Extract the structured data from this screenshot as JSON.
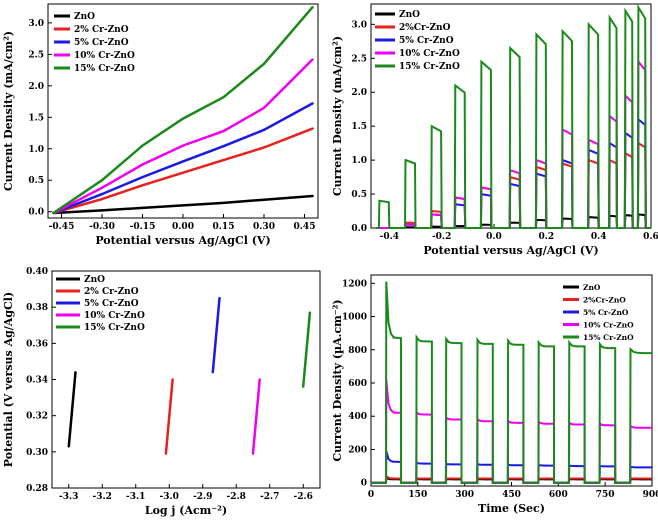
{
  "chart_data": [
    {
      "id": "a",
      "type": "line",
      "xlabel": "Potential versus Ag/AgCl (V)",
      "ylabel": "Current Density (mA/cm²)",
      "xlim": [
        -0.5,
        0.5
      ],
      "ylim": [
        -0.1,
        3.3
      ],
      "xticks": [
        -0.45,
        -0.3,
        -0.15,
        0.0,
        0.15,
        0.3,
        0.45
      ],
      "xtick_labels": [
        "-0.45",
        "-0.30",
        "-0.15",
        "0.00",
        "0.15",
        "0.30",
        "0.45"
      ],
      "yticks": [
        0.0,
        0.5,
        1.0,
        1.5,
        2.0,
        2.5,
        3.0
      ],
      "ytick_labels": [
        "0.0",
        "0.5",
        "1.0",
        "1.5",
        "2.0",
        "2.5",
        "3.0"
      ],
      "legend_position": "top-left",
      "series": [
        {
          "name": "ZnO",
          "color": "#000000",
          "x": [
            -0.48,
            -0.3,
            -0.15,
            0.0,
            0.15,
            0.3,
            0.48
          ],
          "y": [
            -0.02,
            0.02,
            0.06,
            0.1,
            0.14,
            0.19,
            0.25
          ]
        },
        {
          "name": "2% Cr-ZnO",
          "color": "#e8201e",
          "x": [
            -0.48,
            -0.3,
            -0.15,
            0.0,
            0.15,
            0.3,
            0.48
          ],
          "y": [
            -0.02,
            0.2,
            0.42,
            0.62,
            0.82,
            1.02,
            1.32
          ]
        },
        {
          "name": "5% Cr-ZnO",
          "color": "#1a1ae6",
          "x": [
            -0.48,
            -0.3,
            -0.15,
            0.0,
            0.15,
            0.3,
            0.48
          ],
          "y": [
            -0.02,
            0.28,
            0.55,
            0.8,
            1.04,
            1.3,
            1.72
          ]
        },
        {
          "name": "10% Cr-ZnO",
          "color": "#f000f0",
          "x": [
            -0.48,
            -0.3,
            -0.15,
            0.0,
            0.15,
            0.3,
            0.48
          ],
          "y": [
            -0.02,
            0.38,
            0.75,
            1.05,
            1.28,
            1.65,
            2.42
          ]
        },
        {
          "name": "15% Cr-ZnO",
          "color": "#1a8a1a",
          "x": [
            -0.48,
            -0.3,
            -0.15,
            0.0,
            0.15,
            0.3,
            0.48
          ],
          "y": [
            -0.02,
            0.5,
            1.05,
            1.48,
            1.82,
            2.35,
            3.25
          ]
        }
      ]
    },
    {
      "id": "b",
      "type": "line",
      "xlabel": "Potential versus Ag/AgCl (V)",
      "ylabel": "Current Density (mA/cm²)",
      "xlim": [
        -0.47,
        0.6
      ],
      "ylim": [
        0.0,
        3.3
      ],
      "xticks": [
        -0.4,
        -0.2,
        0.0,
        0.2,
        0.4,
        0.6
      ],
      "xtick_labels": [
        "-0.4",
        "-0.2",
        "0.0",
        "0.2",
        "0.4",
        "0.6"
      ],
      "yticks": [
        0.0,
        0.5,
        1.0,
        1.5,
        2.0,
        2.5,
        3.0
      ],
      "ytick_labels": [
        "0.0",
        "0.5",
        "1.0",
        "1.5",
        "2.0",
        "2.5",
        "3.0"
      ],
      "legend_position": "top-left",
      "chopped_light": true,
      "light_on_windows": [
        [
          -0.44,
          -0.4
        ],
        [
          -0.34,
          -0.3
        ],
        [
          -0.24,
          -0.2
        ],
        [
          -0.15,
          -0.11
        ],
        [
          -0.05,
          -0.01
        ],
        [
          0.06,
          0.1
        ],
        [
          0.16,
          0.2
        ],
        [
          0.26,
          0.3
        ],
        [
          0.36,
          0.4
        ],
        [
          0.44,
          0.47
        ],
        [
          0.5,
          0.53
        ],
        [
          0.55,
          0.58
        ]
      ],
      "series": [
        {
          "name": "ZnO",
          "color": "#000000",
          "peaks": [
            0.0,
            0.01,
            0.02,
            0.03,
            0.05,
            0.08,
            0.12,
            0.14,
            0.16,
            0.18,
            0.19,
            0.2
          ]
        },
        {
          "name": "2%Cr-ZnO",
          "color": "#e8201e",
          "peaks": [
            0.0,
            0.08,
            0.25,
            0.45,
            0.6,
            0.75,
            0.9,
            0.95,
            1.0,
            1.0,
            1.1,
            1.25
          ]
        },
        {
          "name": "5% Cr-ZnO",
          "color": "#1a1ae6",
          "peaks": [
            0.0,
            0.05,
            0.2,
            0.35,
            0.5,
            0.65,
            0.8,
            1.0,
            1.15,
            1.25,
            1.4,
            1.6
          ]
        },
        {
          "name": "10% Cr-ZnO",
          "color": "#f000f0",
          "peaks": [
            0.0,
            0.05,
            0.2,
            0.45,
            0.6,
            0.85,
            1.0,
            1.45,
            1.3,
            1.65,
            1.95,
            2.45
          ]
        },
        {
          "name": "15% Cr-ZnO",
          "color": "#1a8a1a",
          "peaks": [
            0.4,
            1.0,
            1.5,
            2.1,
            2.45,
            2.65,
            2.85,
            2.9,
            3.0,
            3.1,
            3.2,
            3.25
          ]
        }
      ]
    },
    {
      "id": "c",
      "type": "line",
      "xlabel": "Log j (Acm⁻²)",
      "ylabel": "Potential (V versus Ag/AgCl)",
      "xlim": [
        -3.35,
        -2.55
      ],
      "ylim": [
        0.28,
        0.4
      ],
      "xticks": [
        -3.3,
        -3.2,
        -3.1,
        -3.0,
        -2.9,
        -2.8,
        -2.7,
        -2.6
      ],
      "xtick_labels": [
        "-3.3",
        "-3.2",
        "-3.1",
        "-3.0",
        "-2.9",
        "-2.8",
        "-2.7",
        "-2.6"
      ],
      "yticks": [
        0.28,
        0.3,
        0.32,
        0.34,
        0.36,
        0.38,
        0.4
      ],
      "ytick_labels": [
        "0.28",
        "0.30",
        "0.32",
        "0.34",
        "0.36",
        "0.38",
        "0.40"
      ],
      "legend_position": "top-left",
      "series": [
        {
          "name": "ZnO",
          "color": "#000000",
          "x": [
            -3.3,
            -3.28
          ],
          "y": [
            0.303,
            0.344
          ]
        },
        {
          "name": "2% Cr-ZnO",
          "color": "#e8201e",
          "x": [
            -3.01,
            -2.99
          ],
          "y": [
            0.299,
            0.34
          ]
        },
        {
          "name": "5% Cr-ZnO",
          "color": "#1a1ae6",
          "x": [
            -2.87,
            -2.85
          ],
          "y": [
            0.344,
            0.385
          ]
        },
        {
          "name": "10% Cr-ZnO",
          "color": "#f000f0",
          "x": [
            -2.75,
            -2.73
          ],
          "y": [
            0.299,
            0.34
          ]
        },
        {
          "name": "15% Cr-ZnO",
          "color": "#1a8a1a",
          "x": [
            -2.6,
            -2.58
          ],
          "y": [
            0.336,
            0.377
          ]
        }
      ]
    },
    {
      "id": "d",
      "type": "line",
      "xlabel": "Time (Sec)",
      "ylabel": "Current Density (µA.cm⁻²)",
      "xlim": [
        0,
        900
      ],
      "ylim": [
        -20,
        1250
      ],
      "xticks": [
        0,
        150,
        300,
        450,
        600,
        750,
        900
      ],
      "xtick_labels": [
        "0",
        "150",
        "300",
        "450",
        "600",
        "750",
        "900"
      ],
      "yticks": [
        0,
        200,
        400,
        600,
        800,
        1000,
        1200
      ],
      "ytick_labels": [
        "0",
        "200",
        "400",
        "600",
        "800",
        "1000",
        "1200"
      ],
      "legend_position": "top-right",
      "on_windows": [
        [
          48,
          96
        ],
        [
          145,
          195
        ],
        [
          240,
          290
        ],
        [
          340,
          390
        ],
        [
          438,
          488
        ],
        [
          536,
          586
        ],
        [
          634,
          684
        ],
        [
          732,
          782
        ],
        [
          830,
          900
        ]
      ],
      "series": [
        {
          "name": "ZnO",
          "color": "#000000",
          "plateau": 20,
          "spike": 30,
          "decay": [
            20,
            20,
            20,
            20,
            20,
            20,
            20,
            20,
            20
          ]
        },
        {
          "name": "2%Cr-ZnO",
          "color": "#e8201e",
          "plateau": 25,
          "spike": 40,
          "decay": [
            25,
            25,
            25,
            25,
            25,
            25,
            25,
            25,
            25
          ]
        },
        {
          "name": "5% Cr-ZnO",
          "color": "#1a1ae6",
          "plateau": 110,
          "spike": 190,
          "decay": [
            125,
            115,
            110,
            108,
            105,
            103,
            100,
            98,
            92
          ]
        },
        {
          "name": "10% Cr-ZnO",
          "color": "#f000f0",
          "plateau": 400,
          "spike": 620,
          "decay": [
            420,
            410,
            380,
            370,
            360,
            355,
            350,
            345,
            330
          ]
        },
        {
          "name": "15% Cr-ZnO",
          "color": "#1a8a1a",
          "plateau": 860,
          "spike": 1210,
          "decay": [
            870,
            850,
            840,
            835,
            830,
            820,
            820,
            810,
            780
          ]
        }
      ]
    }
  ]
}
